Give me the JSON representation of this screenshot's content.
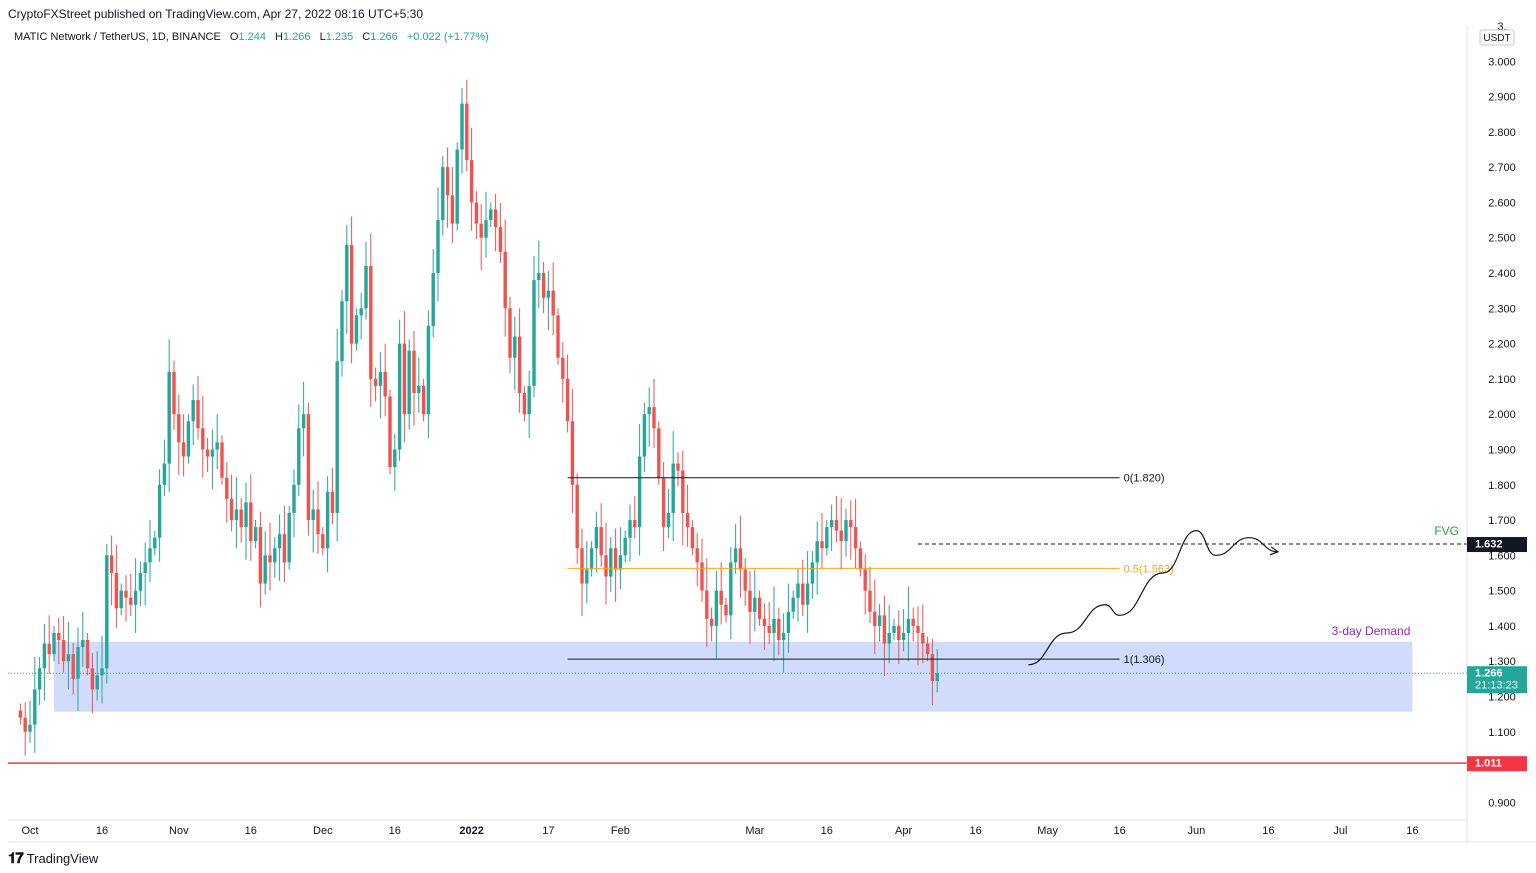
{
  "header": {
    "published_line": "CryptoFXStreet published on TradingView.com, Apr 27, 2022 08:16 UTC+5:30"
  },
  "legend": {
    "symbol": "MATIC Network / TetherUS, 1D, BINANCE",
    "open_label": "O",
    "open": "1.244",
    "high_label": "H",
    "high": "1.266",
    "low_label": "L",
    "low": "1.235",
    "close_label": "C",
    "close": "1.266",
    "change": "+0.022 (+1.77%)"
  },
  "footer": {
    "brand": "TradingView",
    "logo": "tradingview-logo-icon"
  },
  "colors": {
    "up": "#26a69a",
    "down": "#ef5350",
    "zone": "#c9d6fb",
    "fib_mid": "#f5a623",
    "support": "#f23645",
    "fvg": "#2e9e3e",
    "demand_text": "#9c27b0"
  },
  "chart_data": {
    "type": "candlestick",
    "currency": "USDT",
    "ylim": [
      0.85,
      3.1
    ],
    "y_ticks": [
      "3.",
      "3.000",
      "2.900",
      "2.800",
      "2.700",
      "2.600",
      "2.500",
      "2.400",
      "2.300",
      "2.200",
      "2.100",
      "2.000",
      "1.900",
      "1.800",
      "1.700",
      "1.600",
      "1.500",
      "1.400",
      "1.300",
      "1.200",
      "1.100",
      "0.900"
    ],
    "y_tick_values": [
      3.1,
      3.0,
      2.9,
      2.8,
      2.7,
      2.6,
      2.5,
      2.4,
      2.3,
      2.2,
      2.1,
      2.0,
      1.9,
      1.8,
      1.7,
      1.6,
      1.5,
      1.4,
      1.3,
      1.2,
      1.1,
      0.9
    ],
    "x_ticks": [
      {
        "label": "Oct",
        "date": "2021-10-01"
      },
      {
        "label": "16",
        "date": "2021-10-16"
      },
      {
        "label": "Nov",
        "date": "2021-11-01"
      },
      {
        "label": "16",
        "date": "2021-11-16"
      },
      {
        "label": "Dec",
        "date": "2021-12-01"
      },
      {
        "label": "16",
        "date": "2021-12-16"
      },
      {
        "label": "2022",
        "date": "2022-01-01"
      },
      {
        "label": "17",
        "date": "2022-01-17"
      },
      {
        "label": "Feb",
        "date": "2022-02-01"
      },
      {
        "label": "Mar",
        "date": "2022-03-01"
      },
      {
        "label": "16",
        "date": "2022-03-16"
      },
      {
        "label": "Apr",
        "date": "2022-04-01"
      },
      {
        "label": "16",
        "date": "2022-04-16"
      },
      {
        "label": "May",
        "date": "2022-05-01"
      },
      {
        "label": "16",
        "date": "2022-05-16"
      },
      {
        "label": "Jun",
        "date": "2022-06-01"
      },
      {
        "label": "16",
        "date": "2022-06-16"
      },
      {
        "label": "Jul",
        "date": "2022-07-01"
      },
      {
        "label": "16",
        "date": "2022-07-16"
      }
    ],
    "series_start": "2021-09-29",
    "closes": [
      1.14,
      1.1,
      1.12,
      1.22,
      1.28,
      1.35,
      1.32,
      1.38,
      1.36,
      1.3,
      1.32,
      1.25,
      1.34,
      1.36,
      1.28,
      1.22,
      1.26,
      1.28,
      1.6,
      1.55,
      1.45,
      1.5,
      1.48,
      1.46,
      1.5,
      1.55,
      1.58,
      1.62,
      1.65,
      1.8,
      1.86,
      2.12,
      2.0,
      1.92,
      1.88,
      1.98,
      2.04,
      1.96,
      1.9,
      1.88,
      1.9,
      1.92,
      1.82,
      1.76,
      1.7,
      1.73,
      1.68,
      1.75,
      1.64,
      1.68,
      1.52,
      1.6,
      1.58,
      1.62,
      1.66,
      1.58,
      1.72,
      1.8,
      1.96,
      2.0,
      1.7,
      1.73,
      1.66,
      1.62,
      1.78,
      1.72,
      2.15,
      2.32,
      2.48,
      2.2,
      2.28,
      2.3,
      2.42,
      2.1,
      2.08,
      2.12,
      2.05,
      1.85,
      1.9,
      2.2,
      2.0,
      2.18,
      2.06,
      2.08,
      2.0,
      2.25,
      2.4,
      2.55,
      2.7,
      2.62,
      2.54,
      2.75,
      2.88,
      2.72,
      2.6,
      2.54,
      2.5,
      2.55,
      2.58,
      2.53,
      2.46,
      2.3,
      2.16,
      2.22,
      2.06,
      2.0,
      2.08,
      2.38,
      2.4,
      2.33,
      2.35,
      2.28,
      2.16,
      2.1,
      1.98,
      1.8,
      1.62,
      1.52,
      1.56,
      1.62,
      1.68,
      1.6,
      1.54,
      1.62,
      1.56,
      1.6,
      1.65,
      1.7,
      1.68,
      1.88,
      2.0,
      2.02,
      1.96,
      1.82,
      1.68,
      1.72,
      1.86,
      1.84,
      1.72,
      1.68,
      1.62,
      1.58,
      1.5,
      1.42,
      1.4,
      1.5,
      1.46,
      1.43,
      1.58,
      1.62,
      1.56,
      1.5,
      1.44,
      1.48,
      1.42,
      1.4,
      1.38,
      1.42,
      1.36,
      1.38,
      1.44,
      1.48,
      1.52,
      1.46,
      1.52,
      1.58,
      1.64,
      1.62,
      1.68,
      1.7,
      1.67,
      1.64,
      1.7,
      1.68,
      1.62,
      1.56,
      1.5,
      1.44,
      1.4,
      1.43,
      1.35,
      1.38,
      1.4,
      1.36,
      1.38,
      1.42,
      1.4,
      1.38,
      1.35,
      1.32,
      1.244,
      1.266
    ],
    "fib_levels": [
      {
        "label": "0(1.820)",
        "value": 1.82
      },
      {
        "label": "0.5(1.563)",
        "value": 1.563
      },
      {
        "label": "1(1.306)",
        "value": 1.306
      }
    ],
    "fib_start_date": "2022-01-21",
    "fib_end_date": "2022-05-16",
    "demand_zone": {
      "label": "3-day Demand",
      "top": 1.355,
      "bottom": 1.157,
      "start_date": "2021-10-06",
      "end_date": "2022-07-16"
    },
    "fvg": {
      "label": "FVG",
      "value": 1.632,
      "start_date": "2022-04-04"
    },
    "support": {
      "value": 1.011
    },
    "current_price": {
      "value": 1.266,
      "label": "1.266",
      "countdown": "21:13:23"
    },
    "fvg_price_label": "1.632",
    "support_price_label": "1.011",
    "projection_path": [
      {
        "date": "2022-04-27",
        "y": 1.29
      },
      {
        "date": "2022-05-05",
        "y": 1.38
      },
      {
        "date": "2022-05-13",
        "y": 1.46
      },
      {
        "date": "2022-05-16",
        "y": 1.43
      },
      {
        "date": "2022-05-25",
        "y": 1.55
      },
      {
        "date": "2022-06-01",
        "y": 1.67
      },
      {
        "date": "2022-06-05",
        "y": 1.6
      },
      {
        "date": "2022-06-12",
        "y": 1.65
      },
      {
        "date": "2022-06-18",
        "y": 1.61
      }
    ]
  }
}
